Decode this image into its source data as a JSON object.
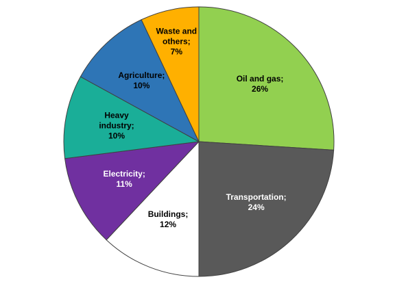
{
  "chart_data": {
    "type": "pie",
    "categories": [
      "Oil and gas;",
      "Transportation;",
      "Buildings;",
      "Electricity;",
      "Heavy industry;",
      "Agriculture;",
      "Waste and others;"
    ],
    "values": [
      26,
      24,
      12,
      11,
      10,
      10,
      7
    ],
    "value_labels": [
      "26%",
      "24%",
      "12%",
      "11%",
      "10%",
      "10%",
      "7%"
    ],
    "colors": [
      "#92d050",
      "#595959",
      "#ffffff",
      "#7030a0",
      "#1aae98",
      "#2e75b6",
      "#ffb000"
    ],
    "label_colors": [
      "#000000",
      "#ffffff",
      "#000000",
      "#ffffff",
      "#000000",
      "#000000",
      "#000000"
    ]
  }
}
